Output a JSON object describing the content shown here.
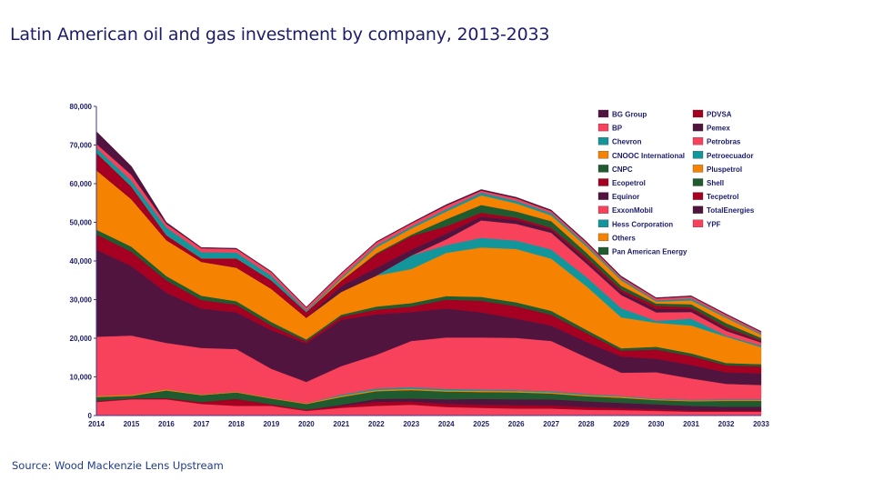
{
  "title": "Latin American oil and gas investment  by company, 2013-2033",
  "source": "Source: Wood Mackenzie Lens Upstream",
  "chart_data": {
    "type": "area",
    "stacked": true,
    "title": "Latin American oil and gas investment  by company, 2013-2033",
    "xlabel": "",
    "ylabel": "",
    "ylim": [
      0,
      80000
    ],
    "yticks": [
      0,
      10000,
      20000,
      30000,
      40000,
      50000,
      60000,
      70000,
      80000
    ],
    "ytick_labels": [
      "0",
      "10,000",
      "20,000",
      "30,000",
      "40,000",
      "50,000",
      "60,000",
      "70,000",
      "80,000"
    ],
    "x": [
      "2014",
      "2015",
      "2016",
      "2017",
      "2018",
      "2019",
      "2020",
      "2021",
      "2022",
      "2023",
      "2024",
      "2025",
      "2026",
      "2027",
      "2028",
      "2029",
      "2030",
      "2031",
      "2032",
      "2033"
    ],
    "legend_position": "top-right",
    "legend": [
      "BG Group",
      "BP",
      "Chevron",
      "CNOOC International",
      "CNPC",
      "Ecopetrol",
      "Equinor",
      "ExxonMobil",
      "Hess Corporation",
      "Others",
      "Pan American Energy",
      "PDVSA",
      "Pemex",
      "Petrobras",
      "Petroecuador",
      "Pluspetrol",
      "Shell",
      "Tecpetrol",
      "TotalEnergies",
      "YPF"
    ],
    "series": [
      {
        "name": "YPF",
        "color": "#f8415a",
        "values": [
          3500,
          4200,
          4200,
          3000,
          2500,
          2500,
          1200,
          2000,
          2500,
          2800,
          2200,
          2000,
          1800,
          1800,
          1500,
          1400,
          1200,
          1000,
          1000,
          1000
        ]
      },
      {
        "name": "Tecpetrol",
        "color": "#a50021",
        "values": [
          300,
          200,
          300,
          500,
          1800,
          400,
          300,
          500,
          1000,
          800,
          800,
          800,
          900,
          800,
          700,
          500,
          400,
          300,
          300,
          300
        ]
      },
      {
        "name": "TotalEnergies",
        "color": "#51143f",
        "values": [
          0,
          0,
          0,
          0,
          0,
          0,
          0,
          300,
          800,
          800,
          1200,
          1500,
          1500,
          1600,
          1500,
          1400,
          1300,
          1200,
          1000,
          1000
        ]
      },
      {
        "name": "Shell",
        "color": "#1f5b2e",
        "values": [
          1000,
          700,
          2000,
          1800,
          1700,
          1500,
          1500,
          2000,
          2000,
          2200,
          2000,
          1800,
          1800,
          1500,
          1300,
          1300,
          1100,
          1200,
          1500,
          1500
        ]
      },
      {
        "name": "Pluspetrol",
        "color": "#f58200",
        "values": [
          300,
          300,
          300,
          200,
          200,
          200,
          200,
          300,
          300,
          300,
          300,
          300,
          300,
          300,
          300,
          300,
          200,
          200,
          200,
          200
        ]
      },
      {
        "name": "Petroecuador",
        "color": "#13969b",
        "values": [
          0,
          0,
          0,
          0,
          0,
          0,
          0,
          300,
          400,
          400,
          400,
          300,
          300,
          300,
          300,
          200,
          200,
          200,
          200,
          200
        ]
      },
      {
        "name": "Petrobras",
        "color": "#f8415a",
        "values": [
          15300,
          15300,
          12000,
          12000,
          11000,
          7500,
          5500,
          7400,
          8700,
          12000,
          13300,
          13500,
          13500,
          13000,
          9500,
          6000,
          6800,
          5500,
          4000,
          3700
        ]
      },
      {
        "name": "Pemex",
        "color": "#51143f",
        "values": [
          22500,
          18000,
          13000,
          10200,
          9500,
          10000,
          10000,
          12000,
          10500,
          7500,
          7500,
          6500,
          5000,
          4000,
          4000,
          4200,
          3500,
          3500,
          3000,
          3000
        ]
      },
      {
        "name": "PDVSA",
        "color": "#a50021",
        "values": [
          4000,
          3700,
          3200,
          2200,
          2000,
          1200,
          500,
          800,
          1200,
          1400,
          2300,
          3000,
          3200,
          2800,
          2300,
          1500,
          2400,
          2300,
          1800,
          1800
        ]
      },
      {
        "name": "Pan American Energy",
        "color": "#1f5b2e",
        "values": [
          1200,
          1300,
          1100,
          1100,
          900,
          900,
          500,
          500,
          800,
          900,
          900,
          1000,
          1000,
          1000,
          800,
          600,
          700,
          700,
          600,
          600
        ]
      },
      {
        "name": "Others",
        "color": "#f58200",
        "values": [
          15400,
          12300,
          9300,
          8800,
          8700,
          8600,
          5600,
          5900,
          8000,
          8800,
          11200,
          12800,
          13800,
          13500,
          11300,
          8000,
          6200,
          7200,
          6800,
          4400
        ]
      },
      {
        "name": "Hess Corporation",
        "color": "#13969b",
        "values": [
          0,
          0,
          0,
          0,
          0,
          0,
          0,
          0,
          0,
          3500,
          2000,
          2500,
          2200,
          2400,
          2400,
          2400,
          500,
          1800,
          300,
          400
        ]
      },
      {
        "name": "ExxonMobil",
        "color": "#f8415a",
        "values": [
          0,
          0,
          0,
          0,
          0,
          0,
          0,
          0,
          0,
          0,
          1500,
          4500,
          4300,
          4300,
          3500,
          3400,
          2200,
          1700,
          1200,
          800
        ]
      },
      {
        "name": "Equinor",
        "color": "#51143f",
        "values": [
          0,
          0,
          0,
          0,
          0,
          0,
          0,
          1500,
          2000,
          1500,
          1500,
          1000,
          1000,
          800,
          800,
          800,
          900,
          700,
          500,
          300
        ]
      },
      {
        "name": "Ecopetrol",
        "color": "#a50021",
        "values": [
          4500,
          3300,
          1300,
          900,
          2400,
          2200,
          1500,
          1400,
          3500,
          3500,
          1900,
          1000,
          600,
          500,
          800,
          600,
          800,
          500,
          500,
          300
        ]
      },
      {
        "name": "CNPC",
        "color": "#1f5b2e",
        "values": [
          0,
          0,
          0,
          0,
          0,
          0,
          0,
          0,
          300,
          400,
          1800,
          2000,
          1600,
          1700,
          1200,
          1000,
          600,
          800,
          1000,
          600
        ]
      },
      {
        "name": "CNOOC International",
        "color": "#f58200",
        "values": [
          0,
          0,
          0,
          0,
          0,
          0,
          0,
          500,
          1500,
          1600,
          2000,
          2500,
          2100,
          1500,
          1600,
          1400,
          500,
          1000,
          1400,
          800
        ]
      },
      {
        "name": "Chevron",
        "color": "#13969b",
        "values": [
          1300,
          1500,
          2000,
          1600,
          1500,
          1200,
          400,
          400,
          500,
          500,
          600,
          700,
          700,
          600,
          500,
          400,
          300,
          500,
          300,
          300
        ]
      },
      {
        "name": "BP",
        "color": "#f8415a",
        "values": [
          1000,
          1500,
          900,
          1000,
          900,
          900,
          700,
          900,
          800,
          800,
          900,
          500,
          600,
          500,
          500,
          400,
          500,
          500,
          500,
          400
        ]
      },
      {
        "name": "BG Group",
        "color": "#51143f",
        "values": [
          3200,
          2200,
          400,
          200,
          200,
          200,
          200,
          200,
          200,
          200,
          300,
          300,
          300,
          300,
          300,
          300,
          200,
          200,
          200,
          200
        ]
      }
    ]
  }
}
